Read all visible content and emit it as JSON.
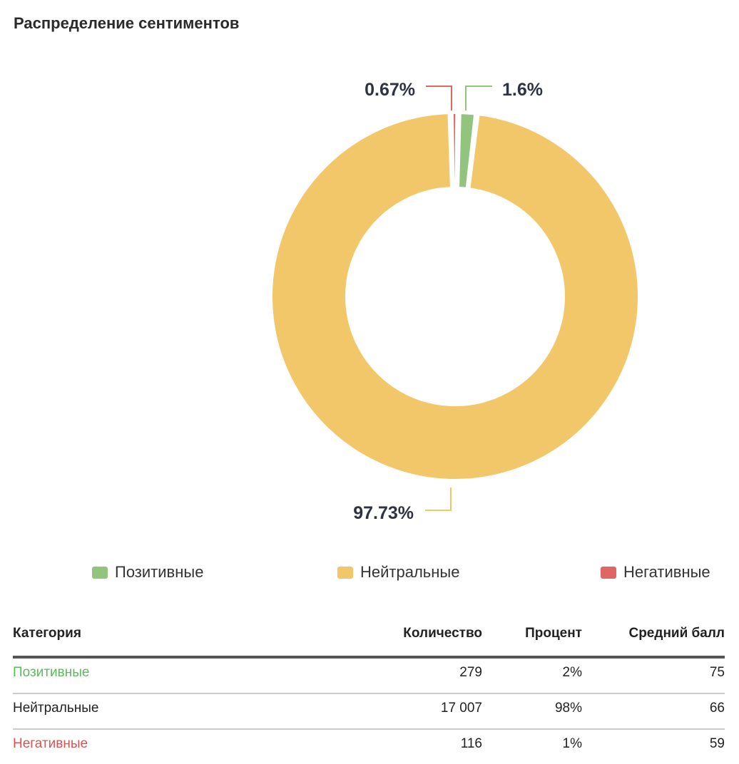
{
  "title": "Распределение сентиментов",
  "chart_data": {
    "type": "pie",
    "donut": true,
    "slices": [
      {
        "name": "Негативные",
        "value": 0.67,
        "label": "0.67%",
        "color": "#e06666"
      },
      {
        "name": "Позитивные",
        "value": 1.6,
        "label": "1.6%",
        "color": "#93c47d"
      },
      {
        "name": "Нейтральные",
        "value": 97.73,
        "label": "97.73%",
        "color": "#f1c76a"
      }
    ],
    "legend": {
      "placement": "bottom",
      "items": [
        {
          "label": "Позитивные",
          "color": "#93c47d"
        },
        {
          "label": "Нейтральные",
          "color": "#f1c76a"
        },
        {
          "label": "Негативные",
          "color": "#e06666"
        }
      ]
    }
  },
  "table": {
    "headers": [
      "Категория",
      "Количество",
      "Процент",
      "Средний балл"
    ],
    "rows": [
      {
        "cells": [
          "Позитивные",
          "279",
          "2%",
          "75"
        ],
        "color": "#5cb85c"
      },
      {
        "cells": [
          "Нейтральные",
          "17 007",
          "98%",
          "66"
        ],
        "color": "#222222"
      },
      {
        "cells": [
          "Негативные",
          "116",
          "1%",
          "59"
        ],
        "color": "#d9534f"
      }
    ]
  }
}
